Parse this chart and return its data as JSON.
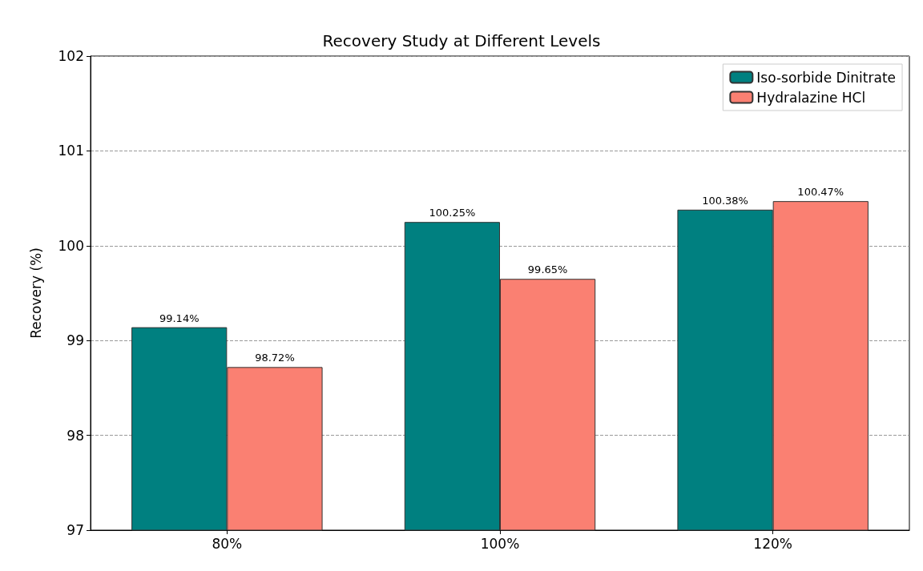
{
  "chart_data": {
    "type": "bar",
    "title": "Recovery Study at Different Levels",
    "ylabel": "Recovery (%)",
    "categories": [
      "80%",
      "100%",
      "120%"
    ],
    "series": [
      {
        "name": "Iso-sorbide Dinitrate",
        "color": "#008080",
        "values": [
          99.14,
          100.25,
          100.38
        ],
        "value_labels": [
          "99.14%",
          "100.25%",
          "100.38%"
        ]
      },
      {
        "name": "Hydralazine HCl",
        "color": "#fa8072",
        "values": [
          98.72,
          99.65,
          100.47
        ],
        "value_labels": [
          "98.72%",
          "99.65%",
          "100.47%"
        ]
      }
    ],
    "ylim": [
      97,
      102
    ],
    "yticks": [
      97,
      98,
      99,
      100,
      101,
      102
    ],
    "grid": "y",
    "legend": "top right"
  }
}
